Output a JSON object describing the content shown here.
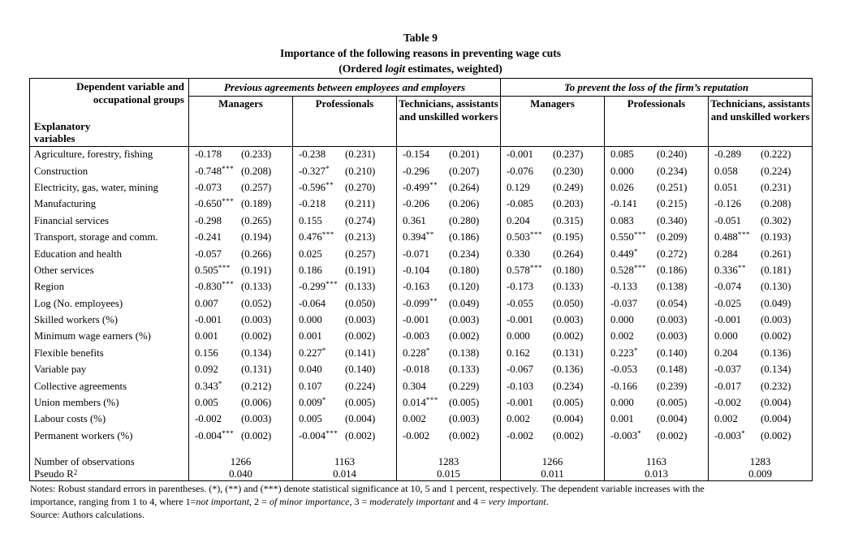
{
  "title": {
    "line1": "Table 9",
    "line2": "Importance of the following reasons in preventing wage cuts",
    "line3_prefix": "(Ordered ",
    "line3_italic": "logit",
    "line3_suffix": " estimates, weighted)"
  },
  "header": {
    "corner_top": "Dependent variable and\noccupational groups",
    "corner_bottom": "Explanatory\nvariables",
    "groups": [
      {
        "label": "Previous agreements between employees and employers",
        "columns": [
          "Managers",
          "Professionals",
          "Technicians, assistants and unskilled workers"
        ]
      },
      {
        "label": "To prevent the loss of the firm’s reputation",
        "columns": [
          "Managers",
          "Professionals",
          "Technicians, assistants and unskilled workers"
        ]
      }
    ]
  },
  "rows": [
    {
      "label": "Agriculture, forestry, fishing",
      "cells": [
        {
          "coef": "-0.178",
          "stars": "",
          "se": "(0.233)"
        },
        {
          "coef": "-0.238",
          "stars": "",
          "se": "(0.231)"
        },
        {
          "coef": "-0.154",
          "stars": "",
          "se": "(0.201)"
        },
        {
          "coef": "-0.001",
          "stars": "",
          "se": "(0.237)"
        },
        {
          "coef": "0.085",
          "stars": "",
          "se": "(0.240)"
        },
        {
          "coef": "-0.289",
          "stars": "",
          "se": "(0.222)"
        }
      ]
    },
    {
      "label": "Construction",
      "cells": [
        {
          "coef": "-0.748",
          "stars": "***",
          "se": "(0.208)"
        },
        {
          "coef": "-0.327",
          "stars": "*",
          "se": "(0.210)"
        },
        {
          "coef": "-0.296",
          "stars": "",
          "se": "(0.207)"
        },
        {
          "coef": "-0.076",
          "stars": "",
          "se": "(0.230)"
        },
        {
          "coef": "0.000",
          "stars": "",
          "se": "(0.234)"
        },
        {
          "coef": "0.058",
          "stars": "",
          "se": "(0.224)"
        }
      ]
    },
    {
      "label": "Electricity, gas, water, mining",
      "cells": [
        {
          "coef": "-0.073",
          "stars": "",
          "se": "(0.257)"
        },
        {
          "coef": "-0.596",
          "stars": "**",
          "se": "(0.270)"
        },
        {
          "coef": "-0.499",
          "stars": "**",
          "se": "(0.264)"
        },
        {
          "coef": "0.129",
          "stars": "",
          "se": "(0.249)"
        },
        {
          "coef": "0.026",
          "stars": "",
          "se": "(0.251)"
        },
        {
          "coef": "0.051",
          "stars": "",
          "se": "(0.231)"
        }
      ]
    },
    {
      "label": "Manufacturing",
      "cells": [
        {
          "coef": "-0.650",
          "stars": "***",
          "se": "(0.189)"
        },
        {
          "coef": "-0.218",
          "stars": "",
          "se": "(0.211)"
        },
        {
          "coef": "-0.206",
          "stars": "",
          "se": "(0.206)"
        },
        {
          "coef": "-0.085",
          "stars": "",
          "se": "(0.203)"
        },
        {
          "coef": "-0.141",
          "stars": "",
          "se": "(0.215)"
        },
        {
          "coef": "-0.126",
          "stars": "",
          "se": "(0.208)"
        }
      ]
    },
    {
      "label": "Financial services",
      "cells": [
        {
          "coef": "-0.298",
          "stars": "",
          "se": "(0.265)"
        },
        {
          "coef": "0.155",
          "stars": "",
          "se": "(0.274)"
        },
        {
          "coef": "0.361",
          "stars": "",
          "se": "(0.280)"
        },
        {
          "coef": "0.204",
          "stars": "",
          "se": "(0.315)"
        },
        {
          "coef": "0.083",
          "stars": "",
          "se": "(0.340)"
        },
        {
          "coef": "-0.051",
          "stars": "",
          "se": "(0.302)"
        }
      ]
    },
    {
      "label": "Transport, storage and comm.",
      "cells": [
        {
          "coef": "-0.241",
          "stars": "",
          "se": "(0.194)"
        },
        {
          "coef": "0.476",
          "stars": "***",
          "se": "(0.213)"
        },
        {
          "coef": "0.394",
          "stars": "**",
          "se": "(0.186)"
        },
        {
          "coef": "0.503",
          "stars": "***",
          "se": "(0.195)"
        },
        {
          "coef": "0.550",
          "stars": "***",
          "se": "(0.209)"
        },
        {
          "coef": "0.488",
          "stars": "***",
          "se": "(0.193)"
        }
      ]
    },
    {
      "label": "Education and health",
      "cells": [
        {
          "coef": "-0.057",
          "stars": "",
          "se": "(0.266)"
        },
        {
          "coef": "0.025",
          "stars": "",
          "se": "(0.257)"
        },
        {
          "coef": "-0.071",
          "stars": "",
          "se": "(0.234)"
        },
        {
          "coef": "0.330",
          "stars": "",
          "se": "(0.264)"
        },
        {
          "coef": "0.449",
          "stars": "*",
          "se": "(0.272)"
        },
        {
          "coef": "0.284",
          "stars": "",
          "se": "(0.261)"
        }
      ]
    },
    {
      "label": "Other services",
      "cells": [
        {
          "coef": "0.505",
          "stars": "***",
          "se": "(0.191)"
        },
        {
          "coef": "0.186",
          "stars": "",
          "se": "(0.191)"
        },
        {
          "coef": "-0.104",
          "stars": "",
          "se": "(0.180)"
        },
        {
          "coef": "0.578",
          "stars": "***",
          "se": "(0.180)"
        },
        {
          "coef": "0.528",
          "stars": "***",
          "se": "(0.186)"
        },
        {
          "coef": "0.336",
          "stars": "**",
          "se": "(0.181)"
        }
      ]
    },
    {
      "label": "Region",
      "cells": [
        {
          "coef": "-0.830",
          "stars": "***",
          "se": "(0.133)"
        },
        {
          "coef": "-0.299",
          "stars": "***",
          "se": "(0.133)"
        },
        {
          "coef": "-0.163",
          "stars": "",
          "se": "(0.120)"
        },
        {
          "coef": "-0.173",
          "stars": "",
          "se": "(0.133)"
        },
        {
          "coef": "-0.133",
          "stars": "",
          "se": "(0.138)"
        },
        {
          "coef": "-0.074",
          "stars": "",
          "se": "(0.130)"
        }
      ]
    },
    {
      "label": "Log (No. employees)",
      "cells": [
        {
          "coef": "0.007",
          "stars": "",
          "se": "(0.052)"
        },
        {
          "coef": "-0.064",
          "stars": "",
          "se": "(0.050)"
        },
        {
          "coef": "-0.099",
          "stars": "**",
          "se": "(0.049)"
        },
        {
          "coef": "-0.055",
          "stars": "",
          "se": "(0.050)"
        },
        {
          "coef": "-0.037",
          "stars": "",
          "se": "(0.054)"
        },
        {
          "coef": "-0.025",
          "stars": "",
          "se": "(0.049)"
        }
      ]
    },
    {
      "label": "Skilled workers (%)",
      "cells": [
        {
          "coef": "-0.001",
          "stars": "",
          "se": "(0.003)"
        },
        {
          "coef": "0.000",
          "stars": "",
          "se": "(0.003)"
        },
        {
          "coef": "-0.001",
          "stars": "",
          "se": "(0.003)"
        },
        {
          "coef": "-0.001",
          "stars": "",
          "se": "(0.003)"
        },
        {
          "coef": "0.000",
          "stars": "",
          "se": "(0.003)"
        },
        {
          "coef": "-0.001",
          "stars": "",
          "se": "(0.003)"
        }
      ]
    },
    {
      "label": "Minimum wage earners (%)",
      "cells": [
        {
          "coef": "0.001",
          "stars": "",
          "se": "(0.002)"
        },
        {
          "coef": "0.001",
          "stars": "",
          "se": "(0.002)"
        },
        {
          "coef": "-0.003",
          "stars": "",
          "se": "(0.002)"
        },
        {
          "coef": "0.000",
          "stars": "",
          "se": "(0.002)"
        },
        {
          "coef": "0.002",
          "stars": "",
          "se": "(0.003)"
        },
        {
          "coef": "0.000",
          "stars": "",
          "se": "(0.002)"
        }
      ]
    },
    {
      "label": "Flexible benefits",
      "cells": [
        {
          "coef": "0.156",
          "stars": "",
          "se": "(0.134)"
        },
        {
          "coef": "0.227",
          "stars": "*",
          "se": "(0.141)"
        },
        {
          "coef": "0.228",
          "stars": "*",
          "se": "(0.138)"
        },
        {
          "coef": "0.162",
          "stars": "",
          "se": "(0.131)"
        },
        {
          "coef": "0.223",
          "stars": "*",
          "se": "(0.140)"
        },
        {
          "coef": "0.204",
          "stars": "",
          "se": "(0.136)"
        }
      ]
    },
    {
      "label": "Variable pay",
      "cells": [
        {
          "coef": "0.092",
          "stars": "",
          "se": "(0.131)"
        },
        {
          "coef": "0.040",
          "stars": "",
          "se": "(0.140)"
        },
        {
          "coef": "-0.018",
          "stars": "",
          "se": "(0.133)"
        },
        {
          "coef": "-0.067",
          "stars": "",
          "se": "(0.136)"
        },
        {
          "coef": "-0.053",
          "stars": "",
          "se": "(0.148)"
        },
        {
          "coef": "-0.037",
          "stars": "",
          "se": "(0.134)"
        }
      ]
    },
    {
      "label": "Collective agreements",
      "cells": [
        {
          "coef": "0.343",
          "stars": "*",
          "se": "(0.212)"
        },
        {
          "coef": "0.107",
          "stars": "",
          "se": "(0.224)"
        },
        {
          "coef": "0.304",
          "stars": "",
          "se": "(0.229)"
        },
        {
          "coef": "-0.103",
          "stars": "",
          "se": "(0.234)"
        },
        {
          "coef": "-0.166",
          "stars": "",
          "se": "(0.239)"
        },
        {
          "coef": "-0.017",
          "stars": "",
          "se": "(0.232)"
        }
      ]
    },
    {
      "label": "Union members (%)",
      "cells": [
        {
          "coef": "0.005",
          "stars": "",
          "se": "(0.006)"
        },
        {
          "coef": "0.009",
          "stars": "*",
          "se": "(0.005)"
        },
        {
          "coef": "0.014",
          "stars": "***",
          "se": "(0.005)"
        },
        {
          "coef": "-0.001",
          "stars": "",
          "se": "(0.005)"
        },
        {
          "coef": "0.000",
          "stars": "",
          "se": "(0.005)"
        },
        {
          "coef": "-0.002",
          "stars": "",
          "se": "(0.004)"
        }
      ]
    },
    {
      "label": "Labour costs (%)",
      "cells": [
        {
          "coef": "-0.002",
          "stars": "",
          "se": "(0.003)"
        },
        {
          "coef": "0.005",
          "stars": "",
          "se": "(0.004)"
        },
        {
          "coef": "0.002",
          "stars": "",
          "se": "(0.003)"
        },
        {
          "coef": "0.002",
          "stars": "",
          "se": "(0.004)"
        },
        {
          "coef": "0.001",
          "stars": "",
          "se": "(0.004)"
        },
        {
          "coef": "0.002",
          "stars": "",
          "se": "(0.004)"
        }
      ]
    },
    {
      "label": "Permanent workers (%)",
      "cells": [
        {
          "coef": "-0.004",
          "stars": "***",
          "se": "(0.002)"
        },
        {
          "coef": "-0.004",
          "stars": "***",
          "se": "(0.002)"
        },
        {
          "coef": "-0.002",
          "stars": "",
          "se": "(0.002)"
        },
        {
          "coef": "-0.002",
          "stars": "",
          "se": "(0.002)"
        },
        {
          "coef": "-0.003",
          "stars": "*",
          "se": "(0.002)"
        },
        {
          "coef": "-0.003",
          "stars": "*",
          "se": "(0.002)"
        }
      ]
    }
  ],
  "summary": [
    {
      "label": "Number of observations",
      "label_sup": "",
      "values": [
        "1266",
        "1163",
        "1283",
        "1266",
        "1163",
        "1283"
      ]
    },
    {
      "label": "Pseudo R",
      "label_sup": "2",
      "values": [
        "0.040",
        "0.014",
        "0.015",
        "0.011",
        "0.013",
        "0.009"
      ]
    }
  ],
  "notes": {
    "line1": "Notes: Robust standard errors in parentheses. (*), (**) and (***) denote statistical significance at 10, 5 and 1 percent, respectively. The dependent variable increases with the",
    "line2_segments": [
      {
        "t": "importance, ranging from 1 to 4, where 1=",
        "i": false
      },
      {
        "t": "not important",
        "i": true
      },
      {
        "t": ", 2 = ",
        "i": false
      },
      {
        "t": "of minor importance",
        "i": true
      },
      {
        "t": ", 3 = ",
        "i": false
      },
      {
        "t": "moderately important",
        "i": true
      },
      {
        "t": " and 4 = ",
        "i": false
      },
      {
        "t": "very important",
        "i": true
      },
      {
        "t": ".",
        "i": false
      }
    ],
    "line3": "Source: Authors calculations."
  }
}
